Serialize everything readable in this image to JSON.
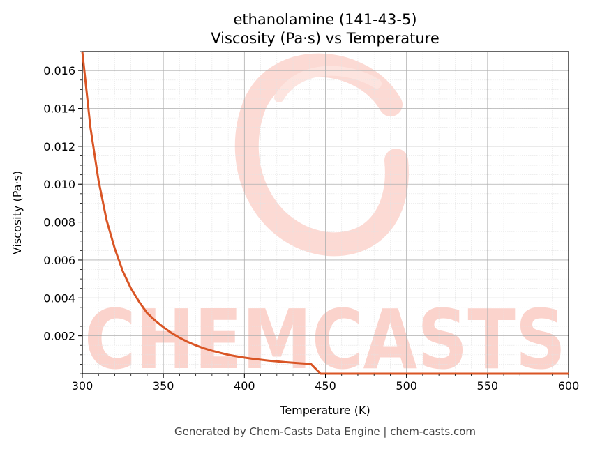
{
  "chart_data": {
    "type": "line",
    "title": "ethanolamine (141-43-5)",
    "subtitle": "Viscosity (Pa·s) vs Temperature",
    "xlabel": "Temperature (K)",
    "ylabel": "Viscosity (Pa·s)",
    "xlim": [
      300,
      600
    ],
    "ylim": [
      0,
      0.017
    ],
    "xticks": [
      "300",
      "350",
      "400",
      "450",
      "500",
      "550",
      "600"
    ],
    "yticks": [
      "0.002",
      "0.004",
      "0.006",
      "0.008",
      "0.010",
      "0.012",
      "0.014",
      "0.016"
    ],
    "grid": true,
    "line_color": "#d95525",
    "x": [
      300,
      305,
      310,
      315,
      320,
      325,
      330,
      335,
      340,
      345,
      350,
      355,
      360,
      365,
      370,
      375,
      380,
      385,
      390,
      395,
      400,
      405,
      410,
      415,
      420,
      425,
      430,
      435,
      441,
      447,
      450,
      500,
      550,
      600
    ],
    "y": [
      0.017,
      0.013,
      0.0102,
      0.0081,
      0.0066,
      0.0054,
      0.0045,
      0.0038,
      0.0032,
      0.0028,
      0.00245,
      0.00215,
      0.0019,
      0.00168,
      0.0015,
      0.00134,
      0.00121,
      0.0011,
      0.001,
      0.00092,
      0.00085,
      0.00079,
      0.00074,
      0.00069,
      0.00065,
      0.00061,
      0.00058,
      0.00055,
      0.00052,
      0.0,
      0.0,
      0.0,
      0.0,
      0.0
    ]
  },
  "watermark": "CHEMCASTS",
  "footer": "Generated by Chem-Casts Data Engine | chem-casts.com"
}
